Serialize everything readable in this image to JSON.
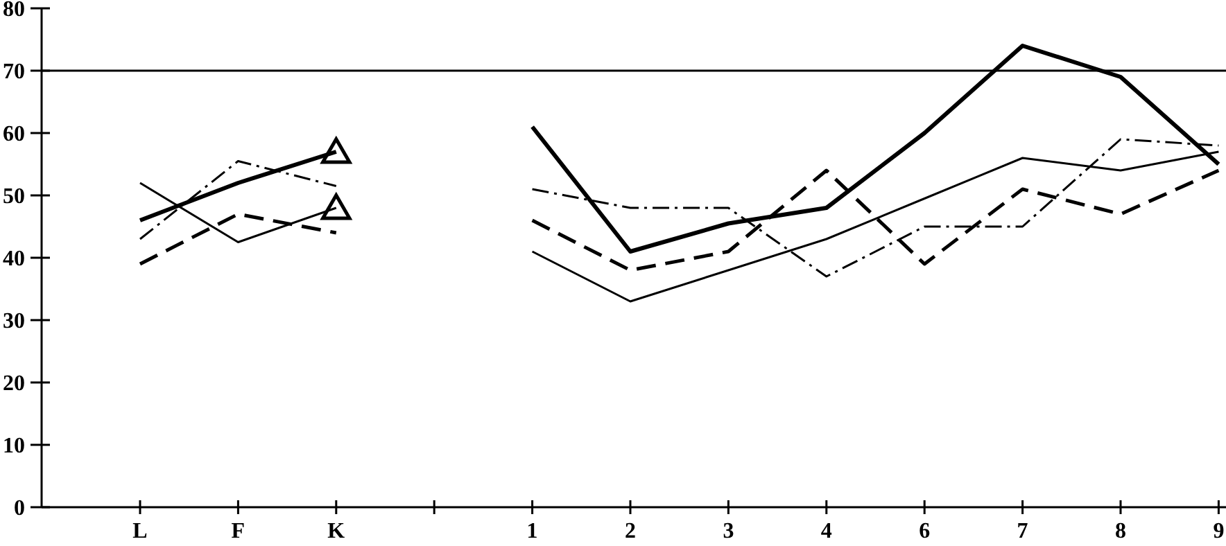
{
  "chart_data": {
    "type": "line",
    "categories": [
      "L",
      "F",
      "K",
      null,
      "1",
      "2",
      "3",
      "4",
      "6",
      "7",
      "8",
      "9"
    ],
    "ylim": [
      0,
      80
    ],
    "yticks": [
      0,
      10,
      20,
      30,
      40,
      50,
      60,
      70,
      80
    ],
    "grid": false,
    "marker": "none",
    "ref_lines": [
      {
        "axis": "y",
        "value": 70,
        "color": "#000000",
        "line_style": "solid"
      }
    ],
    "series": [
      {
        "color": "#000000",
        "line_style": "solid",
        "values": [
          46,
          52,
          57,
          null,
          61,
          41,
          45.5,
          48,
          60,
          74,
          69,
          55
        ]
      },
      {
        "color": "#000000",
        "line_style": "dashed",
        "values": [
          39,
          47,
          44,
          null,
          46,
          38,
          41,
          54,
          39,
          51,
          47,
          54
        ]
      },
      {
        "color": "#000000",
        "line_style": "dashdot",
        "values": [
          43,
          55.5,
          51.5,
          null,
          51,
          48,
          48,
          37,
          45,
          45,
          59,
          58
        ]
      },
      {
        "color": "#000000",
        "line_style": "solid",
        "values": [
          52,
          42.5,
          48,
          null,
          41,
          33,
          38,
          43,
          49.5,
          56,
          54,
          57
        ]
      },
      {
        "type": "scatter",
        "color": "#000000",
        "marker": "triangle",
        "x": [
          "K",
          "K"
        ],
        "values": [
          57,
          48
        ]
      }
    ]
  }
}
